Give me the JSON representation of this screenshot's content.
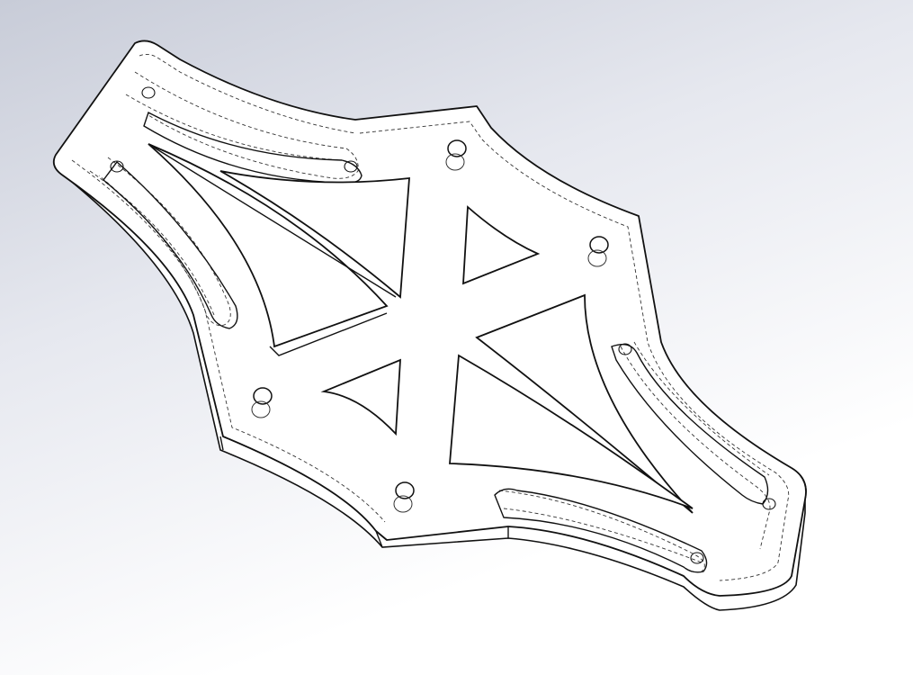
{
  "viewport": {
    "background_top": "#c8ccd8",
    "background_mid": "#e6e8ef",
    "background_bottom": "#ffffff",
    "edge_color": "#111111",
    "hidden_edge_color": "#333333",
    "face_color": "#ffffff"
  },
  "model": {
    "part": "frame-plate",
    "render_mode": "hidden-lines-visible"
  }
}
